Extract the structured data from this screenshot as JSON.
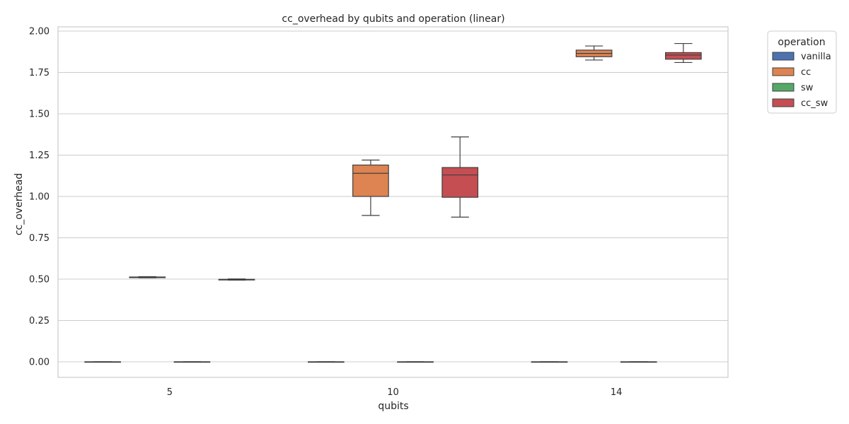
{
  "chart_data": {
    "type": "box",
    "title": "cc_overhead by qubits and operation (linear)",
    "xlabel": "qubits",
    "ylabel": "cc_overhead",
    "categories": [
      "5",
      "10",
      "14"
    ],
    "ylim": [
      -0.1,
      2.02
    ],
    "yticks": [
      "0.00",
      "0.25",
      "0.50",
      "0.75",
      "1.00",
      "1.25",
      "1.50",
      "1.75",
      "2.00"
    ],
    "grid": true,
    "legend": {
      "title": "operation",
      "placement": "upper-right-outside"
    },
    "series": [
      {
        "name": "vanilla",
        "color": "#4c72b0",
        "boxes": [
          {
            "whislo": 0.0,
            "q1": 0.0,
            "med": 0.0,
            "q3": 0.0,
            "whishi": 0.0
          },
          {
            "whislo": 0.0,
            "q1": 0.0,
            "med": 0.0,
            "q3": 0.0,
            "whishi": 0.0
          },
          {
            "whislo": 0.0,
            "q1": 0.0,
            "med": 0.0,
            "q3": 0.0,
            "whishi": 0.0
          }
        ]
      },
      {
        "name": "cc",
        "color": "#dd8452",
        "boxes": [
          {
            "whislo": 0.508,
            "q1": 0.509,
            "med": 0.511,
            "q3": 0.513,
            "whishi": 0.515
          },
          {
            "whislo": 0.885,
            "q1": 1.0,
            "med": 1.14,
            "q3": 1.19,
            "whishi": 1.22
          },
          {
            "whislo": 1.825,
            "q1": 1.845,
            "med": 1.865,
            "q3": 1.885,
            "whishi": 1.91
          }
        ]
      },
      {
        "name": "sw",
        "color": "#55a868",
        "boxes": [
          {
            "whislo": 0.0,
            "q1": 0.0,
            "med": 0.0,
            "q3": 0.0,
            "whishi": 0.0
          },
          {
            "whislo": 0.0,
            "q1": 0.0,
            "med": 0.0,
            "q3": 0.0,
            "whishi": 0.0
          },
          {
            "whislo": 0.0,
            "q1": 0.0,
            "med": 0.0,
            "q3": 0.0,
            "whishi": 0.0
          }
        ]
      },
      {
        "name": "cc_sw",
        "color": "#c44e52",
        "boxes": [
          {
            "whislo": 0.494,
            "q1": 0.495,
            "med": 0.497,
            "q3": 0.499,
            "whishi": 0.501
          },
          {
            "whislo": 0.875,
            "q1": 0.995,
            "med": 1.13,
            "q3": 1.175,
            "whishi": 1.36
          },
          {
            "whislo": 1.81,
            "q1": 1.83,
            "med": 1.855,
            "q3": 1.87,
            "whishi": 1.925
          }
        ]
      }
    ]
  }
}
